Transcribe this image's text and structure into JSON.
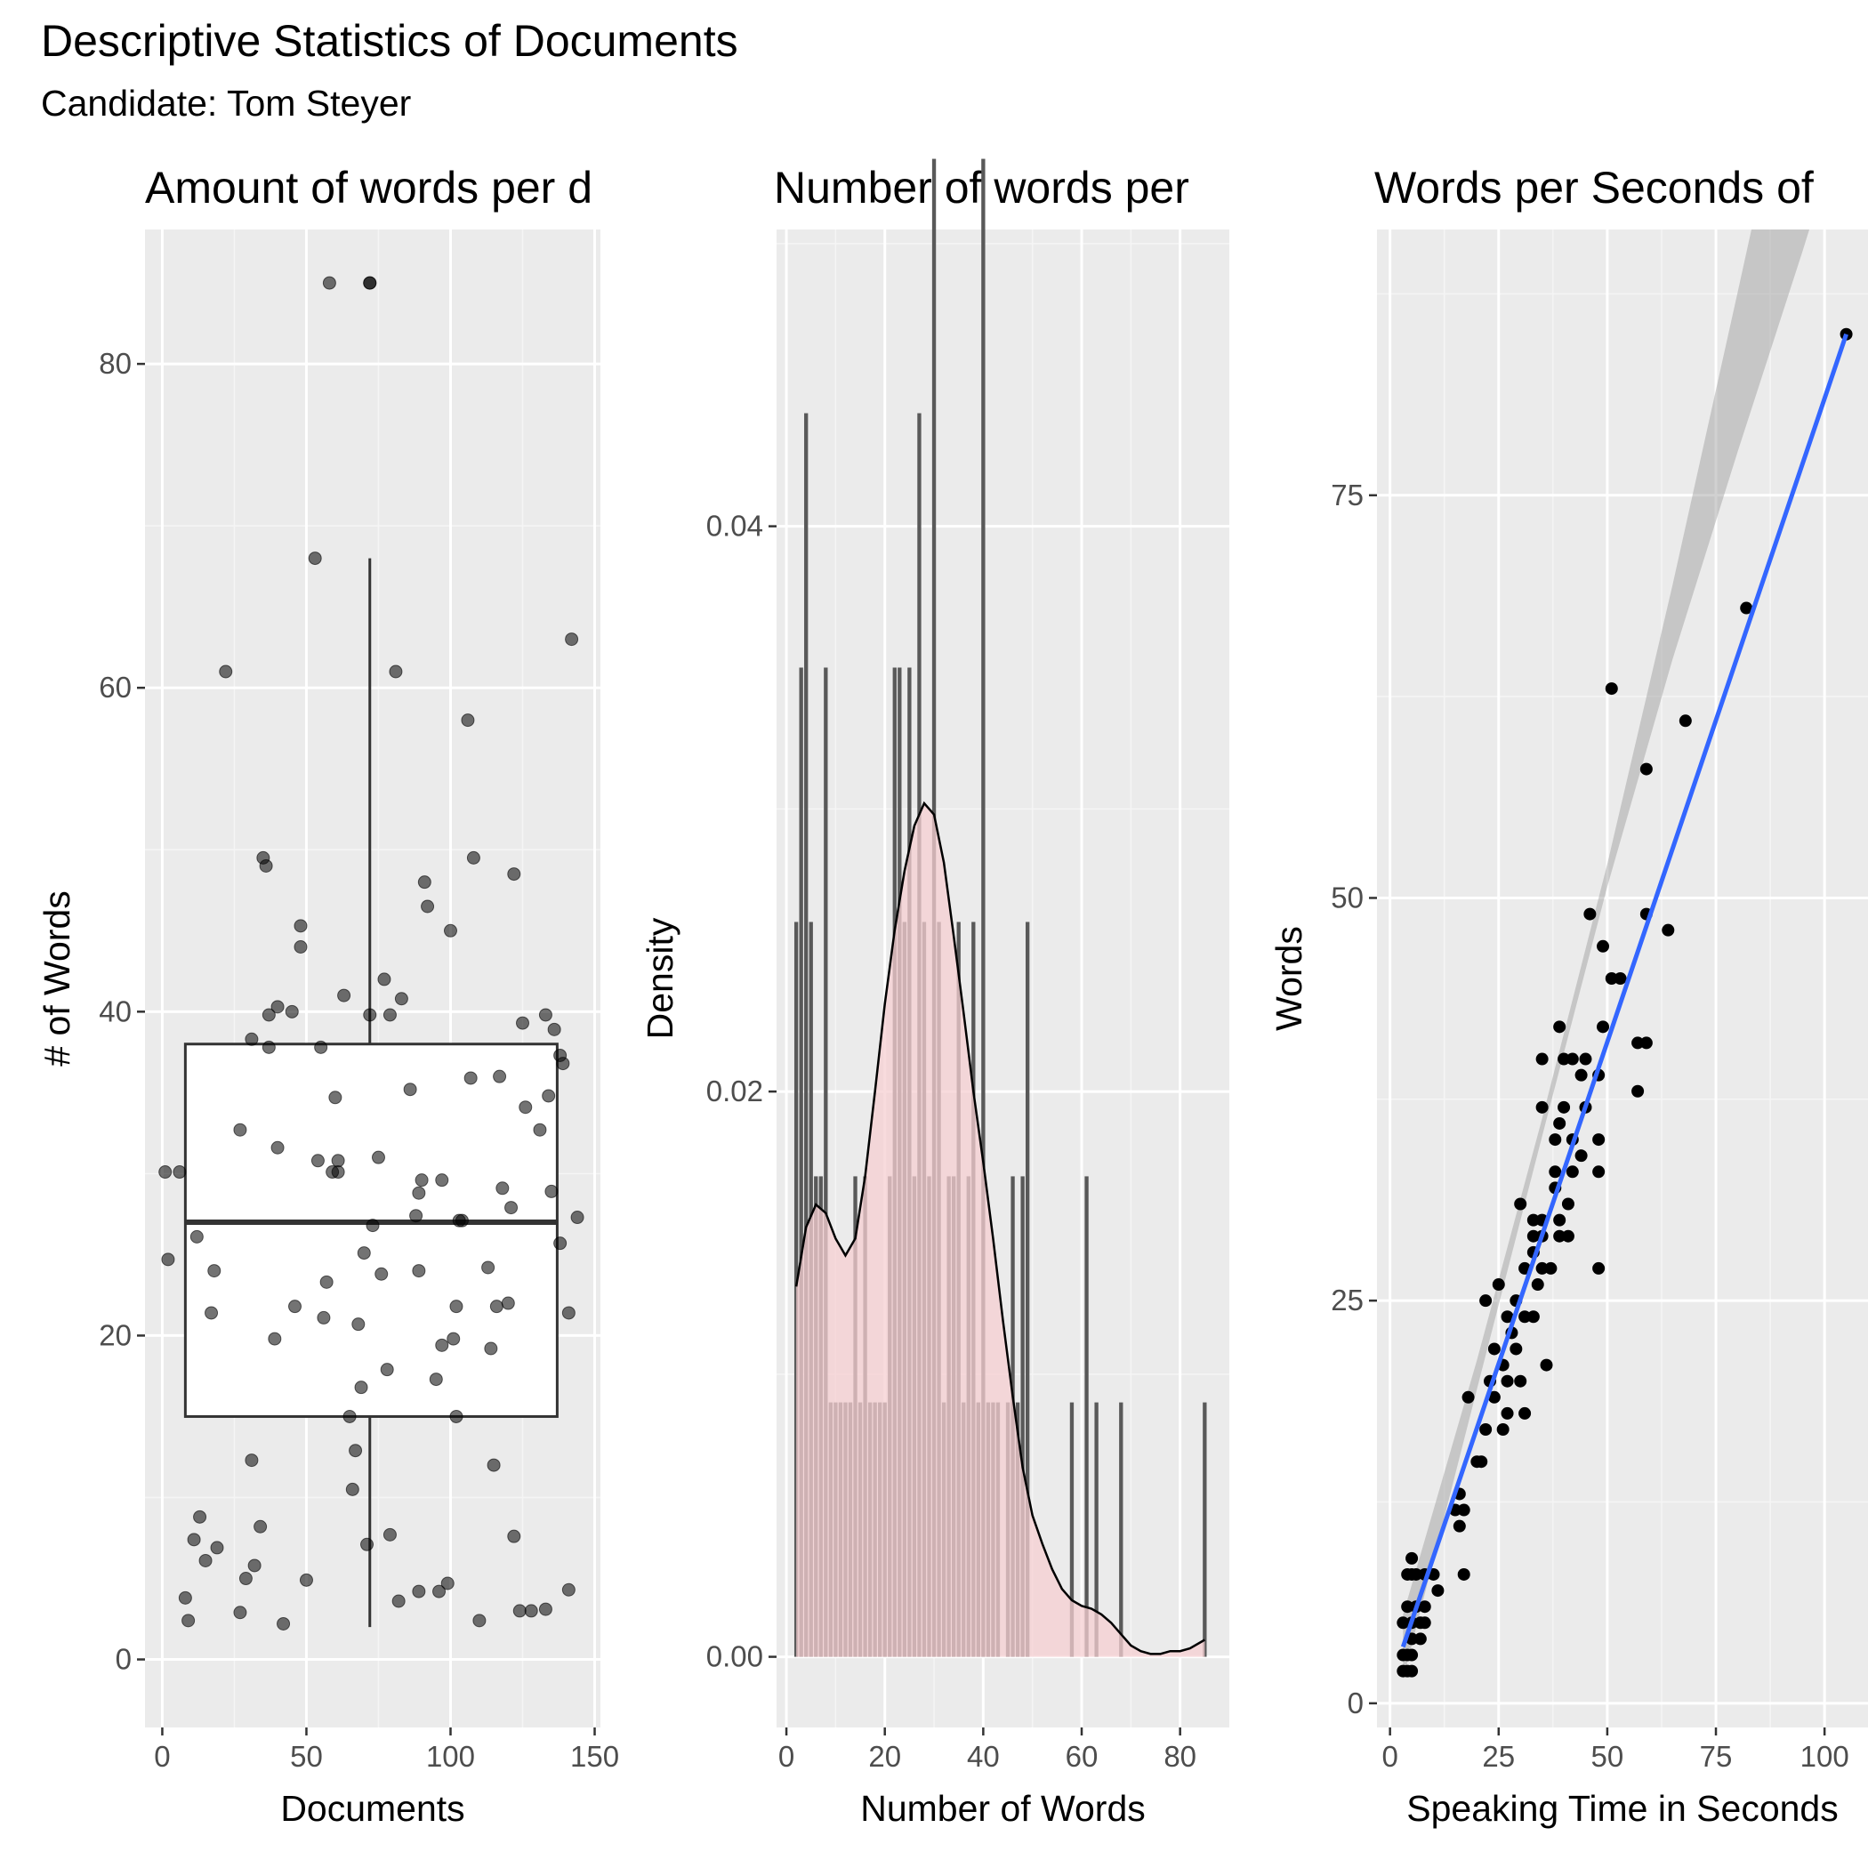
{
  "figure": {
    "title": "Descriptive Statistics of Documents",
    "subtitle": "Candidate: Tom Steyer"
  },
  "chart_data": [
    {
      "type": "scatter",
      "overlay": "boxplot",
      "title": "Amount of words per d",
      "xlabel": "Documents",
      "ylabel": "# of Words",
      "xlim": [
        -6,
        152
      ],
      "ylim": [
        -4.2,
        88.3
      ],
      "xticks": [
        0,
        50,
        100,
        150
      ],
      "yticks": [
        0,
        20,
        40,
        60,
        80
      ],
      "grid": true,
      "point_color": "#000000",
      "points": [
        [
          58,
          85
        ],
        [
          72,
          85
        ],
        [
          72,
          85
        ],
        [
          53,
          68
        ],
        [
          22,
          61
        ],
        [
          81,
          61
        ],
        [
          142,
          63
        ],
        [
          106,
          58
        ],
        [
          35,
          49.5
        ],
        [
          36,
          49
        ],
        [
          91,
          48
        ],
        [
          108,
          49.5
        ],
        [
          122,
          48.5
        ],
        [
          92,
          46.5
        ],
        [
          48,
          45.3
        ],
        [
          100,
          45
        ],
        [
          48,
          44
        ],
        [
          63,
          41
        ],
        [
          77,
          42
        ],
        [
          83,
          40.8
        ],
        [
          40,
          40.3
        ],
        [
          37,
          39.8
        ],
        [
          45,
          40
        ],
        [
          72,
          39.8
        ],
        [
          79,
          39.8
        ],
        [
          133,
          39.8
        ],
        [
          125,
          39.3
        ],
        [
          136,
          38.9
        ],
        [
          31,
          38.3
        ],
        [
          37,
          37.8
        ],
        [
          55,
          37.8
        ],
        [
          138,
          37.3
        ],
        [
          139,
          36.8
        ],
        [
          107,
          35.9
        ],
        [
          117,
          36
        ],
        [
          86,
          35.2
        ],
        [
          134,
          34.8
        ],
        [
          60,
          34.7
        ],
        [
          126,
          34.1
        ],
        [
          27,
          32.7
        ],
        [
          131,
          32.7
        ],
        [
          40,
          31.6
        ],
        [
          75,
          31
        ],
        [
          54,
          30.8
        ],
        [
          61,
          30.8
        ],
        [
          1,
          30.1
        ],
        [
          6,
          30.1
        ],
        [
          59,
          30.1
        ],
        [
          61,
          30.1
        ],
        [
          90,
          29.6
        ],
        [
          97,
          29.6
        ],
        [
          118,
          29.1
        ],
        [
          135,
          28.9
        ],
        [
          89,
          28.8
        ],
        [
          121,
          27.9
        ],
        [
          88,
          27.4
        ],
        [
          103,
          27.1
        ],
        [
          104,
          27.1
        ],
        [
          144,
          27.3
        ],
        [
          73,
          26.8
        ],
        [
          12,
          26.1
        ],
        [
          138,
          25.7
        ],
        [
          70,
          25.1
        ],
        [
          2,
          24.7
        ],
        [
          18,
          24
        ],
        [
          89,
          24
        ],
        [
          76,
          23.8
        ],
        [
          113,
          24.2
        ],
        [
          57,
          23.3
        ],
        [
          46,
          21.8
        ],
        [
          102,
          21.8
        ],
        [
          116,
          21.8
        ],
        [
          120,
          22
        ],
        [
          17,
          21.4
        ],
        [
          56,
          21.1
        ],
        [
          68,
          20.7
        ],
        [
          141,
          21.4
        ],
        [
          39,
          19.8
        ],
        [
          101,
          19.8
        ],
        [
          97,
          19.4
        ],
        [
          114,
          19.2
        ],
        [
          78,
          17.9
        ],
        [
          95,
          17.3
        ],
        [
          69,
          16.8
        ],
        [
          102,
          15
        ],
        [
          65,
          15
        ],
        [
          67,
          12.9
        ],
        [
          31,
          12.3
        ],
        [
          115,
          12
        ],
        [
          66,
          10.5
        ],
        [
          13,
          8.8
        ],
        [
          11,
          7.4
        ],
        [
          19,
          6.9
        ],
        [
          34,
          8.2
        ],
        [
          79,
          7.7
        ],
        [
          71,
          7.1
        ],
        [
          122,
          7.6
        ],
        [
          15,
          6.1
        ],
        [
          32,
          5.8
        ],
        [
          29,
          5.0
        ],
        [
          50,
          4.9
        ],
        [
          99,
          4.7
        ],
        [
          8,
          3.8
        ],
        [
          89,
          4.2
        ],
        [
          96,
          4.2
        ],
        [
          141,
          4.3
        ],
        [
          82,
          3.6
        ],
        [
          27,
          2.9
        ],
        [
          124,
          3
        ],
        [
          128,
          3
        ],
        [
          133,
          3.1
        ],
        [
          9,
          2.4
        ],
        [
          42,
          2.2
        ],
        [
          110,
          2.4
        ]
      ],
      "box": {
        "x_range": [
          8,
          137
        ],
        "q1": 15,
        "median": 27,
        "q3": 38,
        "whisker_low": 2,
        "whisker_high": 68,
        "x_whisker": 72
      }
    },
    {
      "type": "histogram",
      "overlay": "density",
      "title": "Number of words per",
      "xlabel": "Number of Words",
      "ylabel": "Density",
      "xlim": [
        -2,
        90
      ],
      "ylim": [
        -0.0025,
        0.0505
      ],
      "xticks": [
        0,
        20,
        40,
        60,
        80
      ],
      "yticks": [
        0.0,
        0.02,
        0.04
      ],
      "ytick_labels": [
        "0.00",
        "0.02",
        "0.04"
      ],
      "grid": true,
      "bar_color": "#595959",
      "density_fill": "#f6cfd1",
      "bars": [
        [
          2,
          0.026
        ],
        [
          3,
          0.035
        ],
        [
          4,
          0.044
        ],
        [
          5,
          0.026
        ],
        [
          6,
          0.017
        ],
        [
          7,
          0.017
        ],
        [
          8,
          0.035
        ],
        [
          9,
          0.009
        ],
        [
          10,
          0.009
        ],
        [
          11,
          0.009
        ],
        [
          12,
          0.009
        ],
        [
          13,
          0.009
        ],
        [
          14,
          0.017
        ],
        [
          15,
          0.009
        ],
        [
          16,
          0.017
        ],
        [
          17,
          0.009
        ],
        [
          18,
          0.009
        ],
        [
          19,
          0.009
        ],
        [
          20,
          0.009
        ],
        [
          21,
          0.017
        ],
        [
          22,
          0.035
        ],
        [
          23,
          0.035
        ],
        [
          24,
          0.026
        ],
        [
          25,
          0.035
        ],
        [
          26,
          0.017
        ],
        [
          27,
          0.044
        ],
        [
          28,
          0.026
        ],
        [
          29,
          0.017
        ],
        [
          30,
          0.053
        ],
        [
          31,
          0.026
        ],
        [
          32,
          0.009
        ],
        [
          33,
          0.017
        ],
        [
          34,
          0.017
        ],
        [
          35,
          0.026
        ],
        [
          36,
          0.009
        ],
        [
          37,
          0.017
        ],
        [
          38,
          0.026
        ],
        [
          39,
          0.009
        ],
        [
          40,
          0.053
        ],
        [
          41,
          0.009
        ],
        [
          42,
          0.009
        ],
        [
          43,
          0.009
        ],
        [
          45,
          0.009
        ],
        [
          46,
          0.017
        ],
        [
          47,
          0.009
        ],
        [
          48,
          0.017
        ],
        [
          49,
          0.026
        ],
        [
          58,
          0.009
        ],
        [
          61,
          0.017
        ],
        [
          63,
          0.009
        ],
        [
          68,
          0.009
        ],
        [
          85,
          0.009
        ]
      ],
      "density": [
        [
          2,
          0.0131
        ],
        [
          4,
          0.0152
        ],
        [
          6,
          0.016
        ],
        [
          8,
          0.0157
        ],
        [
          10,
          0.0148
        ],
        [
          12,
          0.0142
        ],
        [
          14,
          0.0148
        ],
        [
          16,
          0.017
        ],
        [
          18,
          0.02
        ],
        [
          20,
          0.0231
        ],
        [
          22,
          0.0257
        ],
        [
          24,
          0.0278
        ],
        [
          26,
          0.0294
        ],
        [
          28,
          0.0302
        ],
        [
          30,
          0.0298
        ],
        [
          32,
          0.0281
        ],
        [
          34,
          0.0255
        ],
        [
          36,
          0.0228
        ],
        [
          38,
          0.02
        ],
        [
          40,
          0.0175
        ],
        [
          42,
          0.0148
        ],
        [
          44,
          0.0119
        ],
        [
          46,
          0.0092
        ],
        [
          48,
          0.0067
        ],
        [
          50,
          0.005
        ],
        [
          52,
          0.004
        ],
        [
          54,
          0.0031
        ],
        [
          56,
          0.0024
        ],
        [
          58,
          0.002
        ],
        [
          60,
          0.0018
        ],
        [
          62,
          0.0017
        ],
        [
          64,
          0.0015
        ],
        [
          66,
          0.0012
        ],
        [
          68,
          0.0008
        ],
        [
          70,
          0.0004
        ],
        [
          72,
          0.0002
        ],
        [
          74,
          0.0001
        ],
        [
          76,
          0.0001
        ],
        [
          78,
          0.0002
        ],
        [
          80,
          0.0002
        ],
        [
          82,
          0.0003
        ],
        [
          85,
          0.0006
        ]
      ]
    },
    {
      "type": "scatter",
      "overlay": "linear-fit",
      "title": "Words per Seconds of",
      "xlabel": "Speaking Time in Seconds",
      "ylabel": "Words",
      "xlim": [
        -3,
        110
      ],
      "ylim": [
        -1.5,
        91.5
      ],
      "xticks": [
        0,
        25,
        50,
        75,
        100
      ],
      "yticks": [
        0,
        25,
        50,
        75
      ],
      "grid": true,
      "point_color": "#000000",
      "line_color": "#3366ff",
      "ribbon_color": "#999999",
      "points": [
        [
          105,
          85
        ],
        [
          82,
          68
        ],
        [
          51,
          63
        ],
        [
          68,
          61
        ],
        [
          59,
          58
        ],
        [
          46,
          49
        ],
        [
          49,
          47
        ],
        [
          59,
          49
        ],
        [
          53,
          45
        ],
        [
          64,
          48
        ],
        [
          51,
          45
        ],
        [
          49,
          42
        ],
        [
          57,
          41
        ],
        [
          59,
          41
        ],
        [
          57,
          38
        ],
        [
          39,
          42
        ],
        [
          35,
          40
        ],
        [
          40,
          40
        ],
        [
          42,
          40
        ],
        [
          45,
          40
        ],
        [
          44,
          39
        ],
        [
          48,
          39
        ],
        [
          35,
          37
        ],
        [
          40,
          37
        ],
        [
          45,
          37
        ],
        [
          38,
          35
        ],
        [
          42,
          35
        ],
        [
          39,
          36
        ],
        [
          38,
          33
        ],
        [
          42,
          33
        ],
        [
          48,
          35
        ],
        [
          38,
          32
        ],
        [
          44,
          34
        ],
        [
          48,
          33
        ],
        [
          30,
          31
        ],
        [
          33,
          30
        ],
        [
          35,
          30
        ],
        [
          39,
          30
        ],
        [
          41,
          31
        ],
        [
          33,
          29
        ],
        [
          35,
          29
        ],
        [
          39,
          29
        ],
        [
          33,
          28
        ],
        [
          41,
          29
        ],
        [
          31,
          27
        ],
        [
          35,
          27
        ],
        [
          37,
          27
        ],
        [
          48,
          27
        ],
        [
          25,
          26
        ],
        [
          29,
          25
        ],
        [
          34,
          26
        ],
        [
          22,
          25
        ],
        [
          27,
          24
        ],
        [
          31,
          24
        ],
        [
          33,
          24
        ],
        [
          24,
          22
        ],
        [
          28,
          23
        ],
        [
          29,
          22
        ],
        [
          26,
          21
        ],
        [
          36,
          21
        ],
        [
          23,
          20
        ],
        [
          27,
          20
        ],
        [
          30,
          20
        ],
        [
          18,
          19
        ],
        [
          24,
          19
        ],
        [
          27,
          18
        ],
        [
          31,
          18
        ],
        [
          22,
          17
        ],
        [
          26,
          17
        ],
        [
          20,
          15
        ],
        [
          21,
          15
        ],
        [
          16,
          13
        ],
        [
          15,
          12
        ],
        [
          17,
          12
        ],
        [
          16,
          11
        ],
        [
          17,
          8
        ],
        [
          10,
          8
        ],
        [
          11,
          7
        ],
        [
          8,
          8
        ],
        [
          5,
          8
        ],
        [
          6,
          8
        ],
        [
          4,
          8
        ],
        [
          5,
          9
        ],
        [
          6,
          6
        ],
        [
          8,
          6
        ],
        [
          4,
          6
        ],
        [
          7,
          5
        ],
        [
          8,
          5
        ],
        [
          3,
          5
        ],
        [
          5,
          5
        ],
        [
          5,
          4
        ],
        [
          7,
          4
        ],
        [
          3,
          3
        ],
        [
          4,
          3
        ],
        [
          5,
          3
        ],
        [
          3,
          2
        ],
        [
          4,
          2
        ],
        [
          5,
          2
        ]
      ],
      "fit": {
        "x": [
          3,
          105
        ],
        "y": [
          3.5,
          85
        ]
      },
      "ribbon": [
        [
          3,
          1.5,
          5.5
        ],
        [
          20,
          19.5,
          21.3
        ],
        [
          35,
          35.2,
          36.3
        ],
        [
          50,
          50.7,
          52.1
        ],
        [
          65,
          64.8,
          69.4
        ],
        [
          80,
          77.7,
          87.6
        ],
        [
          95,
          90.2,
          106
        ],
        [
          105,
          98.9,
          117.5
        ]
      ]
    }
  ]
}
